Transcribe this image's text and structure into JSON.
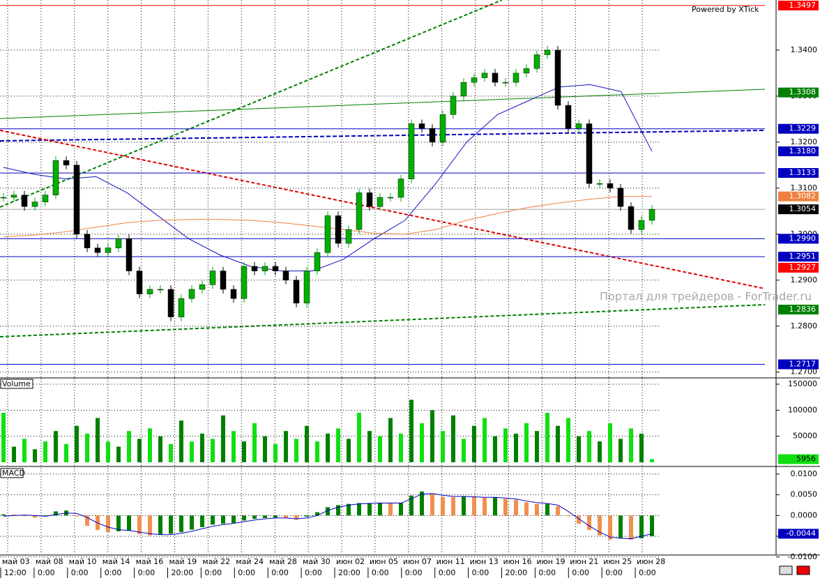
{
  "header": {
    "powered": "Powered by XTick",
    "watermark": "Портал для трейдеров - ForTrader.ru"
  },
  "x_axis": {
    "dates": [
      "май 03",
      "май 08",
      "май 10",
      "май 14",
      "май 16",
      "май 19",
      "май 22",
      "май 24",
      "май 28",
      "май 30",
      "июн 02",
      "июн 05",
      "июн 07",
      "июн 11",
      "июн 13",
      "июн 16",
      "июн 19",
      "июн 21",
      "июн 25",
      "июн 28"
    ],
    "times": [
      "12:00",
      "0:00",
      "0:00",
      "0:00",
      "0:00",
      "20:00",
      "0:00",
      "0:00",
      "0:00",
      "0:00",
      "20:00",
      "0:00",
      "0:00",
      "0:00",
      "0:00",
      "20:00",
      "0:00",
      "0:00",
      "0:00",
      "0:00"
    ]
  },
  "chart_data": [
    {
      "type": "candlestick",
      "up_color": "#00b000",
      "down_color": "#000000",
      "grid": true,
      "ylim": [
        1.2689,
        1.3509
      ],
      "yticks": [
        {
          "value": 1.34,
          "label": "1.3400"
        },
        {
          "value": 1.33,
          "label": "1.3300"
        },
        {
          "value": 1.32,
          "label": "1.3200"
        },
        {
          "value": 1.31,
          "label": "1.3100"
        },
        {
          "value": 1.3,
          "label": "1.3000"
        },
        {
          "value": 1.29,
          "label": "1.2900"
        },
        {
          "value": 1.28,
          "label": "1.2800"
        },
        {
          "value": 1.27,
          "label": "1.2700"
        }
      ],
      "values": [
        1.308,
        1.3085,
        1.306,
        1.307,
        1.3085,
        1.316,
        1.315,
        1.3,
        1.297,
        1.296,
        1.297,
        1.299,
        1.292,
        1.287,
        1.288,
        1.288,
        1.282,
        1.286,
        1.288,
        1.289,
        1.292,
        1.288,
        1.286,
        1.293,
        1.292,
        1.293,
        1.292,
        1.29,
        1.285,
        1.292,
        1.296,
        1.304,
        1.298,
        1.301,
        1.309,
        1.306,
        1.308,
        1.308,
        1.312,
        1.324,
        1.323,
        1.32,
        1.326,
        1.33,
        1.333,
        1.334,
        1.335,
        1.333,
        1.333,
        1.335,
        1.336,
        1.339,
        1.34,
        1.328,
        1.323,
        1.324,
        1.311,
        1.311,
        1.31,
        1.306,
        1.301,
        1.303,
        1.3054
      ],
      "overlays": [
        {
          "color": "#1010c0",
          "values": [
            1.3145,
            1.313,
            1.312,
            1.3125,
            1.309,
            1.304,
            1.299,
            1.2955,
            1.293,
            1.292,
            1.292,
            1.2945,
            1.299,
            1.303,
            1.311,
            1.32,
            1.326,
            1.329,
            1.332,
            1.3325,
            1.331,
            1.318
          ]
        },
        {
          "color": "#f08040",
          "values": [
            1.2994,
            1.2998,
            1.3005,
            1.3015,
            1.3025,
            1.303,
            1.3032,
            1.3032,
            1.303,
            1.3025,
            1.3018,
            1.301,
            1.3002,
            1.3,
            1.301,
            1.303,
            1.3045,
            1.3058,
            1.3068,
            1.3076,
            1.3082,
            1.3082
          ]
        }
      ],
      "levels": [
        {
          "value": 1.3497,
          "label": "1.3497",
          "color": "#ff0000",
          "text_color": "#ffffff",
          "line": true,
          "line_color": "#ff0000"
        },
        {
          "value": 1.3308,
          "label": "1.3308",
          "color": "#008000",
          "text_color": "#ffffff",
          "line": false,
          "line_color": "#008000"
        },
        {
          "value": 1.3229,
          "label": "1.3229",
          "color": "#0000c0",
          "text_color": "#ffffff",
          "line": true,
          "line_color": "#0000c0"
        },
        {
          "value": 1.318,
          "label": "1.3180",
          "color": "#0000c0",
          "text_color": "#ffffff",
          "line": false,
          "line_color": "#0000c0"
        },
        {
          "value": 1.3133,
          "label": "1.3133",
          "color": "#0000c0",
          "text_color": "#ffffff",
          "line": true,
          "line_color": "#0000c0"
        },
        {
          "value": 1.3082,
          "label": "1.3082",
          "color": "#f08040",
          "text_color": "#ffffff",
          "line": false,
          "line_color": "#f08040"
        },
        {
          "value": 1.3054,
          "label": "1.3054",
          "color": "#000000",
          "text_color": "#ffffff",
          "line": true,
          "line_color": "#a0a0a0"
        },
        {
          "value": 1.299,
          "label": "1.2990",
          "color": "#0000c0",
          "text_color": "#ffffff",
          "line": true,
          "line_color": "#0000c0"
        },
        {
          "value": 1.2951,
          "label": "1.2951",
          "color": "#0000c0",
          "text_color": "#ffffff",
          "line": true,
          "line_color": "#0000c0"
        },
        {
          "value": 1.2927,
          "label": "1.2927",
          "color": "#ff0000",
          "text_color": "#ffffff",
          "line": false,
          "line_color": "#ff0000"
        },
        {
          "value": 1.2836,
          "label": "1.2836",
          "color": "#008000",
          "text_color": "#ffffff",
          "line": false,
          "line_color": "#008000"
        },
        {
          "value": 1.2717,
          "label": "1.2717",
          "color": "#0000c0",
          "text_color": "#ffffff",
          "line": true,
          "line_color": "#0000c0"
        }
      ]
    },
    {
      "type": "bar",
      "title": "Volume",
      "color": "#10e010",
      "ylim": [
        -6700,
        160700
      ],
      "yticks": [
        150000,
        100000,
        50000
      ],
      "values": [
        95000,
        30000,
        45000,
        25000,
        40000,
        60000,
        35000,
        70000,
        55000,
        85000,
        40000,
        30000,
        60000,
        45000,
        65000,
        50000,
        35000,
        80000,
        40000,
        55000,
        45000,
        90000,
        60000,
        40000,
        75000,
        50000,
        35000,
        60000,
        45000,
        70000,
        40000,
        55000,
        65000,
        45000,
        95000,
        60000,
        50000,
        85000,
        55000,
        120000,
        75000,
        100000,
        60000,
        90000,
        45000,
        70000,
        85000,
        50000,
        65000,
        55000,
        75000,
        60000,
        95000,
        70000,
        85000,
        50000,
        60000,
        40000,
        75000,
        45000,
        65000,
        55000,
        5956
      ],
      "last_color": "#10e010"
    },
    {
      "type": "macd",
      "title": "MACD",
      "up_color": "#008000",
      "down_color": "#f09050",
      "ylim": [
        -0.0102,
        0.0115
      ],
      "yticks": [
        {
          "value": 0.01,
          "label": "0.0100"
        },
        {
          "value": 0.005,
          "label": "0.0050"
        },
        {
          "value": 0,
          "label": "0.0000"
        },
        {
          "value": -0.005,
          "label": "-0.0050"
        },
        {
          "value": -0.01,
          "label": "-0.0100"
        }
      ],
      "values": [
        0.0003,
        0.0002,
        0,
        -0.0005,
        0,
        0.001,
        0.0012,
        -0.0002,
        -0.0025,
        -0.0035,
        -0.004,
        -0.0038,
        -0.0037,
        -0.0045,
        -0.0048,
        -0.0046,
        -0.0044,
        -0.004,
        -0.0034,
        -0.0028,
        -0.0022,
        -0.002,
        -0.0018,
        -0.0012,
        -0.0008,
        -0.0006,
        -0.0005,
        -0.0006,
        -0.001,
        -0.0003,
        0.0008,
        0.002,
        0.0025,
        0.0028,
        0.003,
        0.003,
        0.0031,
        0.0029,
        0.003,
        0.0048,
        0.0058,
        0.0052,
        0.0045,
        0.0044,
        0.0046,
        0.0045,
        0.0043,
        0.0044,
        0.004,
        0.0038,
        0.0032,
        0.0028,
        0.0028,
        0.0022,
        0,
        -0.002,
        -0.0035,
        -0.0048,
        -0.0058,
        -0.0055,
        -0.0058,
        -0.0055,
        -0.005
      ],
      "signal": {
        "color": "#0000c0",
        "values": [
          -0.0002,
          0,
          0.0001,
          0,
          -0.0002,
          0.0002,
          0.0006,
          0.0005,
          -0.0005,
          -0.0018,
          -0.0028,
          -0.0034,
          -0.0036,
          -0.004,
          -0.0044,
          -0.0046,
          -0.0046,
          -0.0043,
          -0.0038,
          -0.0032,
          -0.0026,
          -0.0022,
          -0.0019,
          -0.0015,
          -0.0011,
          -0.0008,
          -0.0006,
          -0.0006,
          -0.0008,
          -0.0006,
          0,
          0.0012,
          0.002,
          0.0025,
          0.0028,
          0.0029,
          0.003,
          0.003,
          0.003,
          0.004,
          0.0052,
          0.0053,
          0.0049,
          0.0046,
          0.0046,
          0.0045,
          0.0044,
          0.0044,
          0.0042,
          0.004,
          0.0035,
          0.0031,
          0.0029,
          0.0025,
          0.001,
          -0.0008,
          -0.0025,
          -0.004,
          -0.0052,
          -0.0055,
          -0.0056,
          -0.005,
          -0.0044
        ]
      },
      "last_color": "#0000c0"
    }
  ]
}
